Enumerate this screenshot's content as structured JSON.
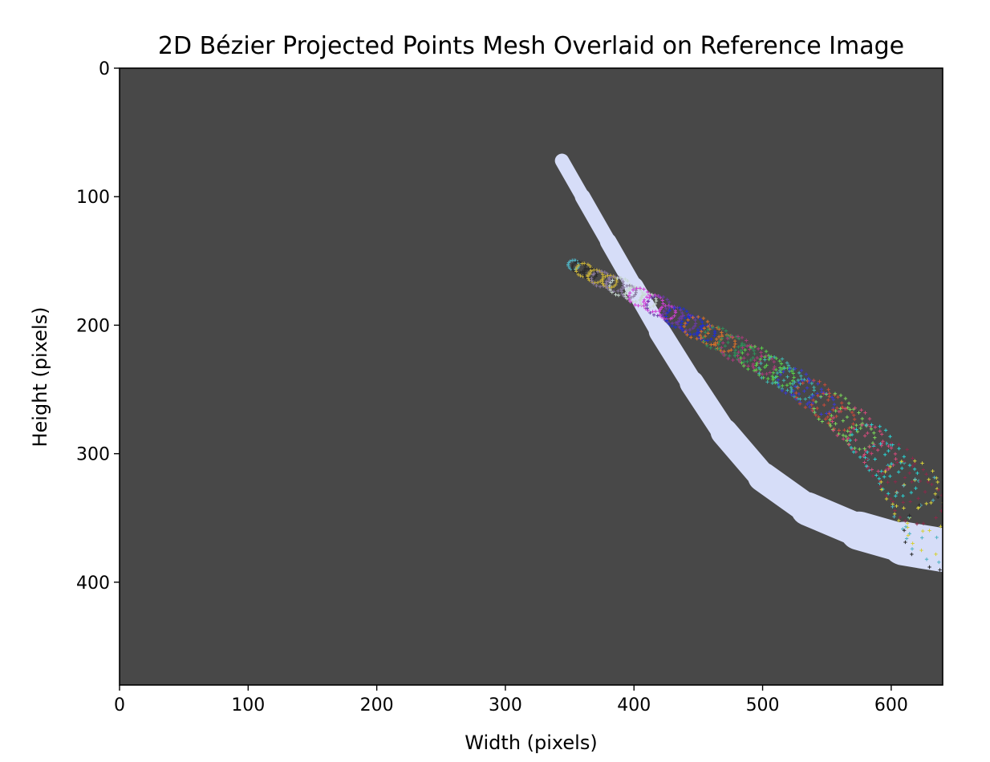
{
  "chart_data": {
    "type": "scatter",
    "title": "2D Bézier Projected Points Mesh Overlaid on Reference Image",
    "xlabel": "Width (pixels)",
    "ylabel": "Height (pixels)",
    "xlim": [
      0,
      640
    ],
    "ylim": [
      480,
      0
    ],
    "y_axis_inverted": true,
    "x_ticks": [
      0,
      100,
      200,
      300,
      400,
      500,
      600
    ],
    "y_ticks": [
      0,
      100,
      200,
      300,
      400
    ],
    "grid": false,
    "legend": "none",
    "background_image": {
      "description_color": "#484848",
      "tube_color": "#d6ddf8",
      "tube_centerline": [
        [
          344,
          72
        ],
        [
          360,
          100
        ],
        [
          380,
          135
        ],
        [
          400,
          170
        ],
        [
          420,
          205
        ],
        [
          445,
          245
        ],
        [
          470,
          283
        ],
        [
          500,
          318
        ],
        [
          535,
          343
        ],
        [
          575,
          360
        ],
        [
          610,
          370
        ],
        [
          640,
          375
        ]
      ],
      "tube_half_width": [
        5,
        6,
        6,
        7,
        8,
        9,
        10,
        11,
        12,
        14,
        16,
        18
      ]
    },
    "mesh_centerline": [
      [
        357,
        155
      ],
      [
        370,
        162
      ],
      [
        385,
        168
      ],
      [
        400,
        176
      ],
      [
        415,
        183
      ],
      [
        430,
        192
      ],
      [
        445,
        200
      ],
      [
        460,
        208
      ],
      [
        475,
        216
      ],
      [
        490,
        224
      ],
      [
        505,
        233
      ],
      [
        520,
        242
      ],
      [
        535,
        252
      ],
      [
        550,
        263
      ],
      [
        565,
        275
      ],
      [
        580,
        289
      ],
      [
        595,
        305
      ],
      [
        610,
        322
      ],
      [
        625,
        340
      ],
      [
        640,
        360
      ]
    ],
    "mesh_radius": [
      6,
      7,
      8,
      8,
      9,
      9,
      10,
      10,
      11,
      11,
      12,
      12,
      13,
      14,
      15,
      16,
      18,
      22,
      28,
      34
    ],
    "marker": "+",
    "palette": [
      "#4fb3c4",
      "#2a2a2a",
      "#c9b13a",
      "#8a7aa0",
      "#c7d9d0",
      "#d03fd6",
      "#6b3aa8",
      "#1e2fd6",
      "#d9722a",
      "#2f8f5a",
      "#a83a7a",
      "#58d24a",
      "#3fb7b0",
      "#3a3ad0",
      "#c84a3a",
      "#7ad65a",
      "#d24a7a",
      "#2ad0d0",
      "#8a2a4a",
      "#d6d03a"
    ]
  }
}
